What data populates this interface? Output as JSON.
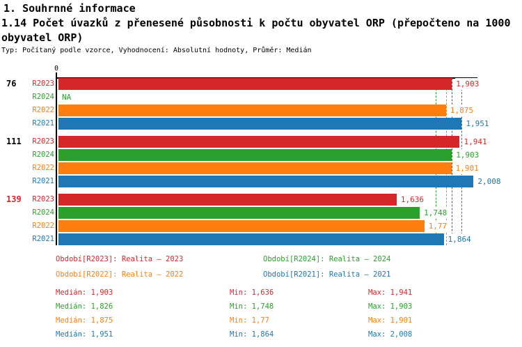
{
  "header": {
    "title": "1. Souhrnné informace",
    "subtitle": "1.14 Počet úvazků z přenesené působnosti k počtu obyvatel ORP (přepočteno na 1000 obyvatel ORP)",
    "meta": "Typ: Počítaný podle vzorce, Vyhodnocení: Absolutní hodnoty, Průměr: Medián"
  },
  "colors": {
    "r2023_red": "#d62728",
    "r2024_green": "#2ca02c",
    "r2022_orange": "#ff7f0e",
    "r2021_blue": "#1f77b4",
    "axis_black": "#000000",
    "highlight_group": "#d62728"
  },
  "chart_data": {
    "type": "bar",
    "orientation": "horizontal",
    "x_axis": {
      "origin_label": "0",
      "xlim": [
        0,
        2.05
      ],
      "grid": false
    },
    "value_format": "czech decimal comma",
    "series": [
      {
        "id": "R2023",
        "name": "Realita – 2023",
        "color": "#d62728",
        "median": 1.903
      },
      {
        "id": "R2024",
        "name": "Realita – 2024",
        "color": "#2ca02c",
        "median": 1.826
      },
      {
        "id": "R2022",
        "name": "Realita – 2022",
        "color": "#ff7f0e",
        "median": 1.875
      },
      {
        "id": "R2021",
        "name": "Realita – 2021",
        "color": "#1f77b4",
        "median": 1.951
      }
    ],
    "groups": [
      {
        "label": "76",
        "highlighted": false,
        "bars": [
          {
            "series": "R2023",
            "value": 1.903,
            "label": "1,903"
          },
          {
            "series": "R2024",
            "value": null,
            "label": "NA"
          },
          {
            "series": "R2022",
            "value": 1.875,
            "label": "1,875"
          },
          {
            "series": "R2021",
            "value": 1.951,
            "label": "1,951"
          }
        ]
      },
      {
        "label": "111",
        "highlighted": false,
        "bars": [
          {
            "series": "R2023",
            "value": 1.941,
            "label": "1,941"
          },
          {
            "series": "R2024",
            "value": 1.903,
            "label": "1,903"
          },
          {
            "series": "R2022",
            "value": 1.901,
            "label": "1,901"
          },
          {
            "series": "R2021",
            "value": 2.008,
            "label": "2,008"
          }
        ]
      },
      {
        "label": "139",
        "highlighted": true,
        "bars": [
          {
            "series": "R2023",
            "value": 1.636,
            "label": "1,636"
          },
          {
            "series": "R2024",
            "value": 1.748,
            "label": "1,748"
          },
          {
            "series": "R2022",
            "value": 1.77,
            "label": "1,77"
          },
          {
            "series": "R2021",
            "value": 1.864,
            "label": "1,864"
          }
        ]
      }
    ],
    "median_guides": [
      {
        "series": "R2023",
        "value": 1.903
      },
      {
        "series": "R2024",
        "value": 1.826
      },
      {
        "series": "R2022",
        "value": 1.875
      },
      {
        "series": "R2021",
        "value": 1.951
      }
    ]
  },
  "legend": {
    "items": [
      {
        "series": "R2023",
        "label": "Období[R2023]: Realita – 2023",
        "color": "#d62728"
      },
      {
        "series": "R2024",
        "label": "Období[R2024]: Realita – 2024",
        "color": "#2ca02c"
      },
      {
        "series": "R2022",
        "label": "Období[R2022]: Realita – 2022",
        "color": "#ff7f0e"
      },
      {
        "series": "R2021",
        "label": "Období[R2021]: Realita – 2021",
        "color": "#1f77b4"
      }
    ]
  },
  "stats": {
    "rows": [
      {
        "series": "R2023",
        "color": "#d62728",
        "median": "Medián: 1,903",
        "min": "Min: 1,636",
        "max": "Max: 1,941"
      },
      {
        "series": "R2024",
        "color": "#2ca02c",
        "median": "Medián: 1,826",
        "min": "Min: 1,748",
        "max": "Max: 1,903"
      },
      {
        "series": "R2022",
        "color": "#ff7f0e",
        "median": "Medián: 1,875",
        "min": "Min: 1,77",
        "max": "Max: 1,901"
      },
      {
        "series": "R2021",
        "color": "#1f77b4",
        "median": "Medián: 1,951",
        "min": "Min: 1,864",
        "max": "Max: 2,008"
      }
    ]
  }
}
